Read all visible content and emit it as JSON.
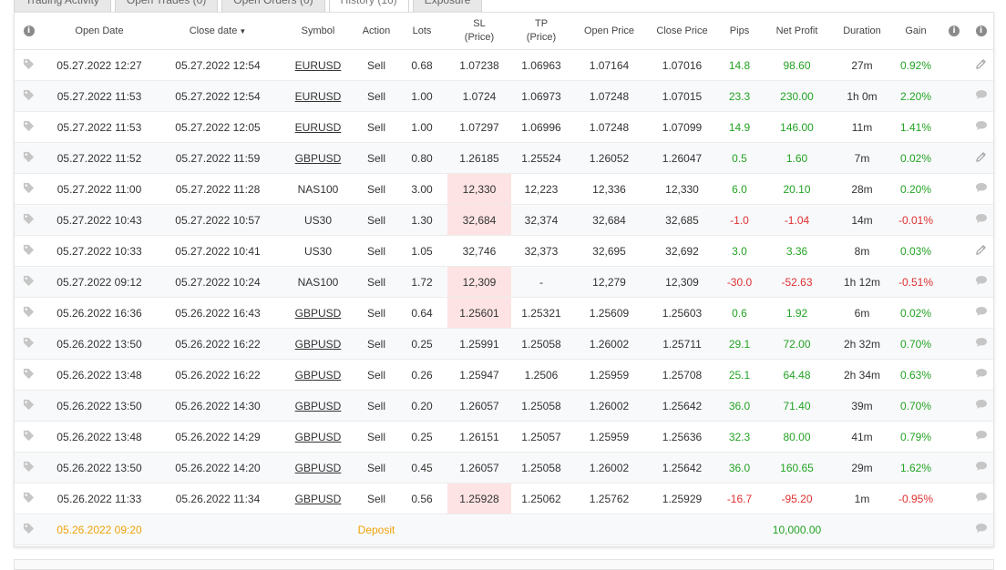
{
  "tabs": [
    {
      "label": "Trading Activity",
      "active": false
    },
    {
      "label": "Open Trades (0)",
      "active": false
    },
    {
      "label": "Open Orders (0)",
      "active": false
    },
    {
      "label": "History (16)",
      "active": true
    },
    {
      "label": "Exposure",
      "active": false
    }
  ],
  "icons": {
    "info": "info-icon",
    "tag": "tag-icon",
    "comment": "comment-icon",
    "edit": "pencil-icon"
  },
  "colors": {
    "positive": "#23a323",
    "negative": "#e03030",
    "deposit": "#f0a30a",
    "sl_hit_bg": "#fde3e3"
  },
  "headers": {
    "open_date": "Open Date",
    "close_date": "Close date",
    "close_date_sort": "▼",
    "symbol": "Symbol",
    "action": "Action",
    "lots": "Lots",
    "sl_line1": "SL",
    "sl_line2": "(Price)",
    "tp_line1": "TP",
    "tp_line2": "(Price)",
    "open_price": "Open Price",
    "close_price": "Close Price",
    "pips": "Pips",
    "net_profit": "Net Profit",
    "duration": "Duration",
    "gain": "Gain"
  },
  "rows": [
    {
      "open": "05.27.2022 12:27",
      "close": "05.27.2022 12:54",
      "symbol": "EURUSD",
      "action": "Sell",
      "lots": "0.68",
      "sl": "1.07238",
      "tp": "1.06963",
      "open_price": "1.07164",
      "close_price": "1.07016",
      "pips": "14.8",
      "profit": "98.60",
      "duration": "27m",
      "gain": "0.92%",
      "sign": "pos",
      "sl_hit": false,
      "link": true,
      "icon": "pencil-icon"
    },
    {
      "open": "05.27.2022 11:53",
      "close": "05.27.2022 12:54",
      "symbol": "EURUSD",
      "action": "Sell",
      "lots": "1.00",
      "sl": "1.0724",
      "tp": "1.06973",
      "open_price": "1.07248",
      "close_price": "1.07015",
      "pips": "23.3",
      "profit": "230.00",
      "duration": "1h 0m",
      "gain": "2.20%",
      "sign": "pos",
      "sl_hit": false,
      "link": true,
      "icon": "comment-icon"
    },
    {
      "open": "05.27.2022 11:53",
      "close": "05.27.2022 12:05",
      "symbol": "EURUSD",
      "action": "Sell",
      "lots": "1.00",
      "sl": "1.07297",
      "tp": "1.06996",
      "open_price": "1.07248",
      "close_price": "1.07099",
      "pips": "14.9",
      "profit": "146.00",
      "duration": "11m",
      "gain": "1.41%",
      "sign": "pos",
      "sl_hit": false,
      "link": true,
      "icon": "comment-icon"
    },
    {
      "open": "05.27.2022 11:52",
      "close": "05.27.2022 11:59",
      "symbol": "GBPUSD",
      "action": "Sell",
      "lots": "0.80",
      "sl": "1.26185",
      "tp": "1.25524",
      "open_price": "1.26052",
      "close_price": "1.26047",
      "pips": "0.5",
      "profit": "1.60",
      "duration": "7m",
      "gain": "0.02%",
      "sign": "pos",
      "sl_hit": false,
      "link": true,
      "icon": "pencil-icon"
    },
    {
      "open": "05.27.2022 11:00",
      "close": "05.27.2022 11:28",
      "symbol": "NAS100",
      "action": "Sell",
      "lots": "3.00",
      "sl": "12,330",
      "tp": "12,223",
      "open_price": "12,336",
      "close_price": "12,330",
      "pips": "6.0",
      "profit": "20.10",
      "duration": "28m",
      "gain": "0.20%",
      "sign": "pos",
      "sl_hit": true,
      "link": false,
      "icon": "comment-icon"
    },
    {
      "open": "05.27.2022 10:43",
      "close": "05.27.2022 10:57",
      "symbol": "US30",
      "action": "Sell",
      "lots": "1.30",
      "sl": "32,684",
      "tp": "32,374",
      "open_price": "32,684",
      "close_price": "32,685",
      "pips": "-1.0",
      "profit": "-1.04",
      "duration": "14m",
      "gain": "-0.01%",
      "sign": "neg",
      "sl_hit": true,
      "link": false,
      "icon": "comment-icon"
    },
    {
      "open": "05.27.2022 10:33",
      "close": "05.27.2022 10:41",
      "symbol": "US30",
      "action": "Sell",
      "lots": "1.05",
      "sl": "32,746",
      "tp": "32,373",
      "open_price": "32,695",
      "close_price": "32,692",
      "pips": "3.0",
      "profit": "3.36",
      "duration": "8m",
      "gain": "0.03%",
      "sign": "pos",
      "sl_hit": false,
      "link": false,
      "icon": "pencil-icon"
    },
    {
      "open": "05.27.2022 09:12",
      "close": "05.27.2022 10:24",
      "symbol": "NAS100",
      "action": "Sell",
      "lots": "1.72",
      "sl": "12,309",
      "tp": "-",
      "open_price": "12,279",
      "close_price": "12,309",
      "pips": "-30.0",
      "profit": "-52.63",
      "duration": "1h 12m",
      "gain": "-0.51%",
      "sign": "neg",
      "sl_hit": true,
      "link": false,
      "icon": "comment-icon"
    },
    {
      "open": "05.26.2022 16:36",
      "close": "05.26.2022 16:43",
      "symbol": "GBPUSD",
      "action": "Sell",
      "lots": "0.64",
      "sl": "1.25601",
      "tp": "1.25321",
      "open_price": "1.25609",
      "close_price": "1.25603",
      "pips": "0.6",
      "profit": "1.92",
      "duration": "6m",
      "gain": "0.02%",
      "sign": "pos",
      "sl_hit": true,
      "link": true,
      "icon": "comment-icon"
    },
    {
      "open": "05.26.2022 13:50",
      "close": "05.26.2022 16:22",
      "symbol": "GBPUSD",
      "action": "Sell",
      "lots": "0.25",
      "sl": "1.25991",
      "tp": "1.25058",
      "open_price": "1.26002",
      "close_price": "1.25711",
      "pips": "29.1",
      "profit": "72.00",
      "duration": "2h 32m",
      "gain": "0.70%",
      "sign": "pos",
      "sl_hit": false,
      "link": true,
      "icon": "comment-icon"
    },
    {
      "open": "05.26.2022 13:48",
      "close": "05.26.2022 16:22",
      "symbol": "GBPUSD",
      "action": "Sell",
      "lots": "0.26",
      "sl": "1.25947",
      "tp": "1.2506",
      "open_price": "1.25959",
      "close_price": "1.25708",
      "pips": "25.1",
      "profit": "64.48",
      "duration": "2h 34m",
      "gain": "0.63%",
      "sign": "pos",
      "sl_hit": false,
      "link": true,
      "icon": "comment-icon"
    },
    {
      "open": "05.26.2022 13:50",
      "close": "05.26.2022 14:30",
      "symbol": "GBPUSD",
      "action": "Sell",
      "lots": "0.20",
      "sl": "1.26057",
      "tp": "1.25058",
      "open_price": "1.26002",
      "close_price": "1.25642",
      "pips": "36.0",
      "profit": "71.40",
      "duration": "39m",
      "gain": "0.70%",
      "sign": "pos",
      "sl_hit": false,
      "link": true,
      "icon": "comment-icon"
    },
    {
      "open": "05.26.2022 13:48",
      "close": "05.26.2022 14:29",
      "symbol": "GBPUSD",
      "action": "Sell",
      "lots": "0.25",
      "sl": "1.26151",
      "tp": "1.25057",
      "open_price": "1.25959",
      "close_price": "1.25636",
      "pips": "32.3",
      "profit": "80.00",
      "duration": "41m",
      "gain": "0.79%",
      "sign": "pos",
      "sl_hit": false,
      "link": true,
      "icon": "comment-icon"
    },
    {
      "open": "05.26.2022 13:50",
      "close": "05.26.2022 14:20",
      "symbol": "GBPUSD",
      "action": "Sell",
      "lots": "0.45",
      "sl": "1.26057",
      "tp": "1.25058",
      "open_price": "1.26002",
      "close_price": "1.25642",
      "pips": "36.0",
      "profit": "160.65",
      "duration": "29m",
      "gain": "1.62%",
      "sign": "pos",
      "sl_hit": false,
      "link": true,
      "icon": "comment-icon"
    },
    {
      "open": "05.26.2022 11:33",
      "close": "05.26.2022 11:34",
      "symbol": "GBPUSD",
      "action": "Sell",
      "lots": "0.56",
      "sl": "1.25928",
      "tp": "1.25062",
      "open_price": "1.25762",
      "close_price": "1.25929",
      "pips": "-16.7",
      "profit": "-95.20",
      "duration": "1m",
      "gain": "-0.95%",
      "sign": "neg",
      "sl_hit": true,
      "link": true,
      "icon": "comment-icon"
    }
  ],
  "deposit": {
    "date": "05.26.2022 09:20",
    "action": "Deposit",
    "amount": "10,000.00"
  }
}
